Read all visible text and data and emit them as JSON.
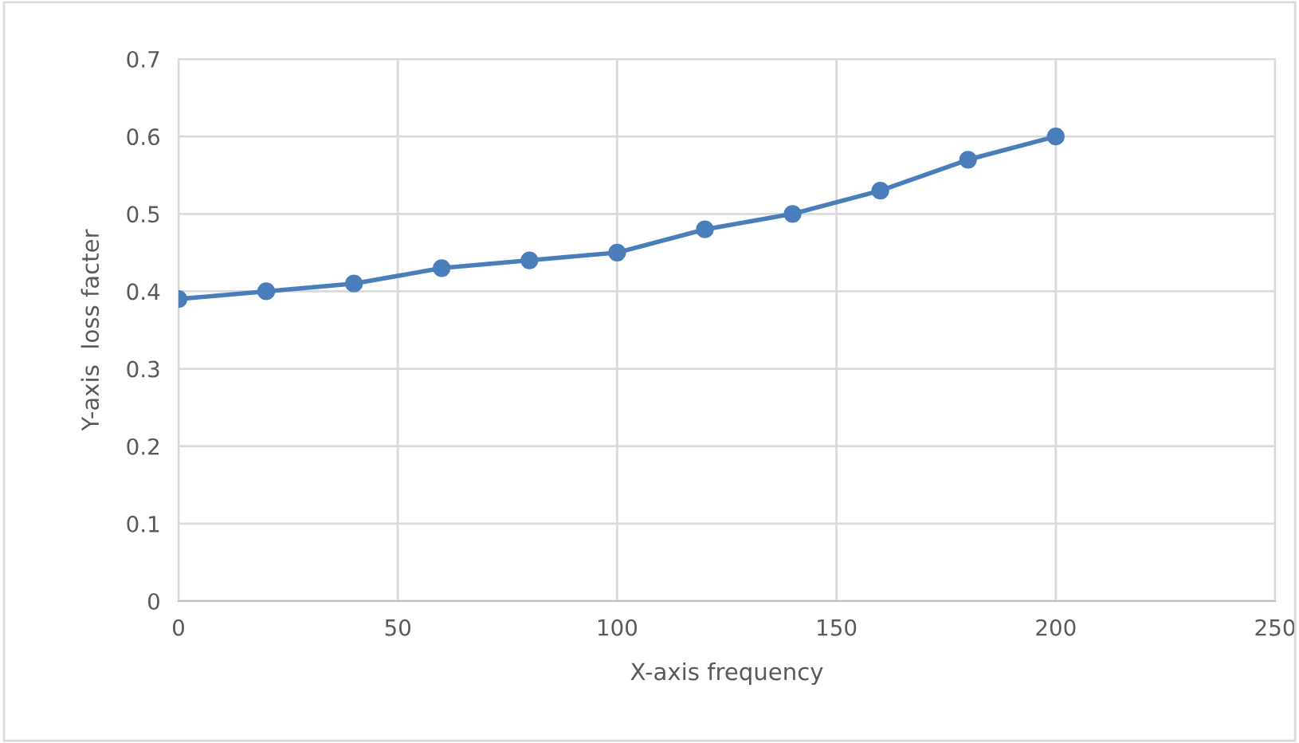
{
  "chart_data": {
    "type": "line",
    "xlabel": "X-axis frequency",
    "ylabel": "Y-axis  loss facter",
    "x": [
      0,
      20,
      40,
      60,
      80,
      100,
      120,
      140,
      160,
      180,
      200
    ],
    "series": [
      {
        "color": "#4a7ebb",
        "values": [
          0.39,
          0.4,
          0.41,
          0.43,
          0.44,
          0.45,
          0.48,
          0.5,
          0.53,
          0.57,
          0.6
        ]
      }
    ],
    "xlim": [
      0,
      250
    ],
    "xticks": [
      0,
      50,
      100,
      150,
      200,
      250
    ],
    "ylim": [
      0,
      0.7
    ],
    "yticks": [
      {
        "value": 0,
        "label": "0"
      },
      0.1,
      0.2,
      0.3,
      0.4,
      0.5,
      0.6,
      0.7
    ],
    "grid": true,
    "marker": "circle",
    "line_style": "solid"
  }
}
